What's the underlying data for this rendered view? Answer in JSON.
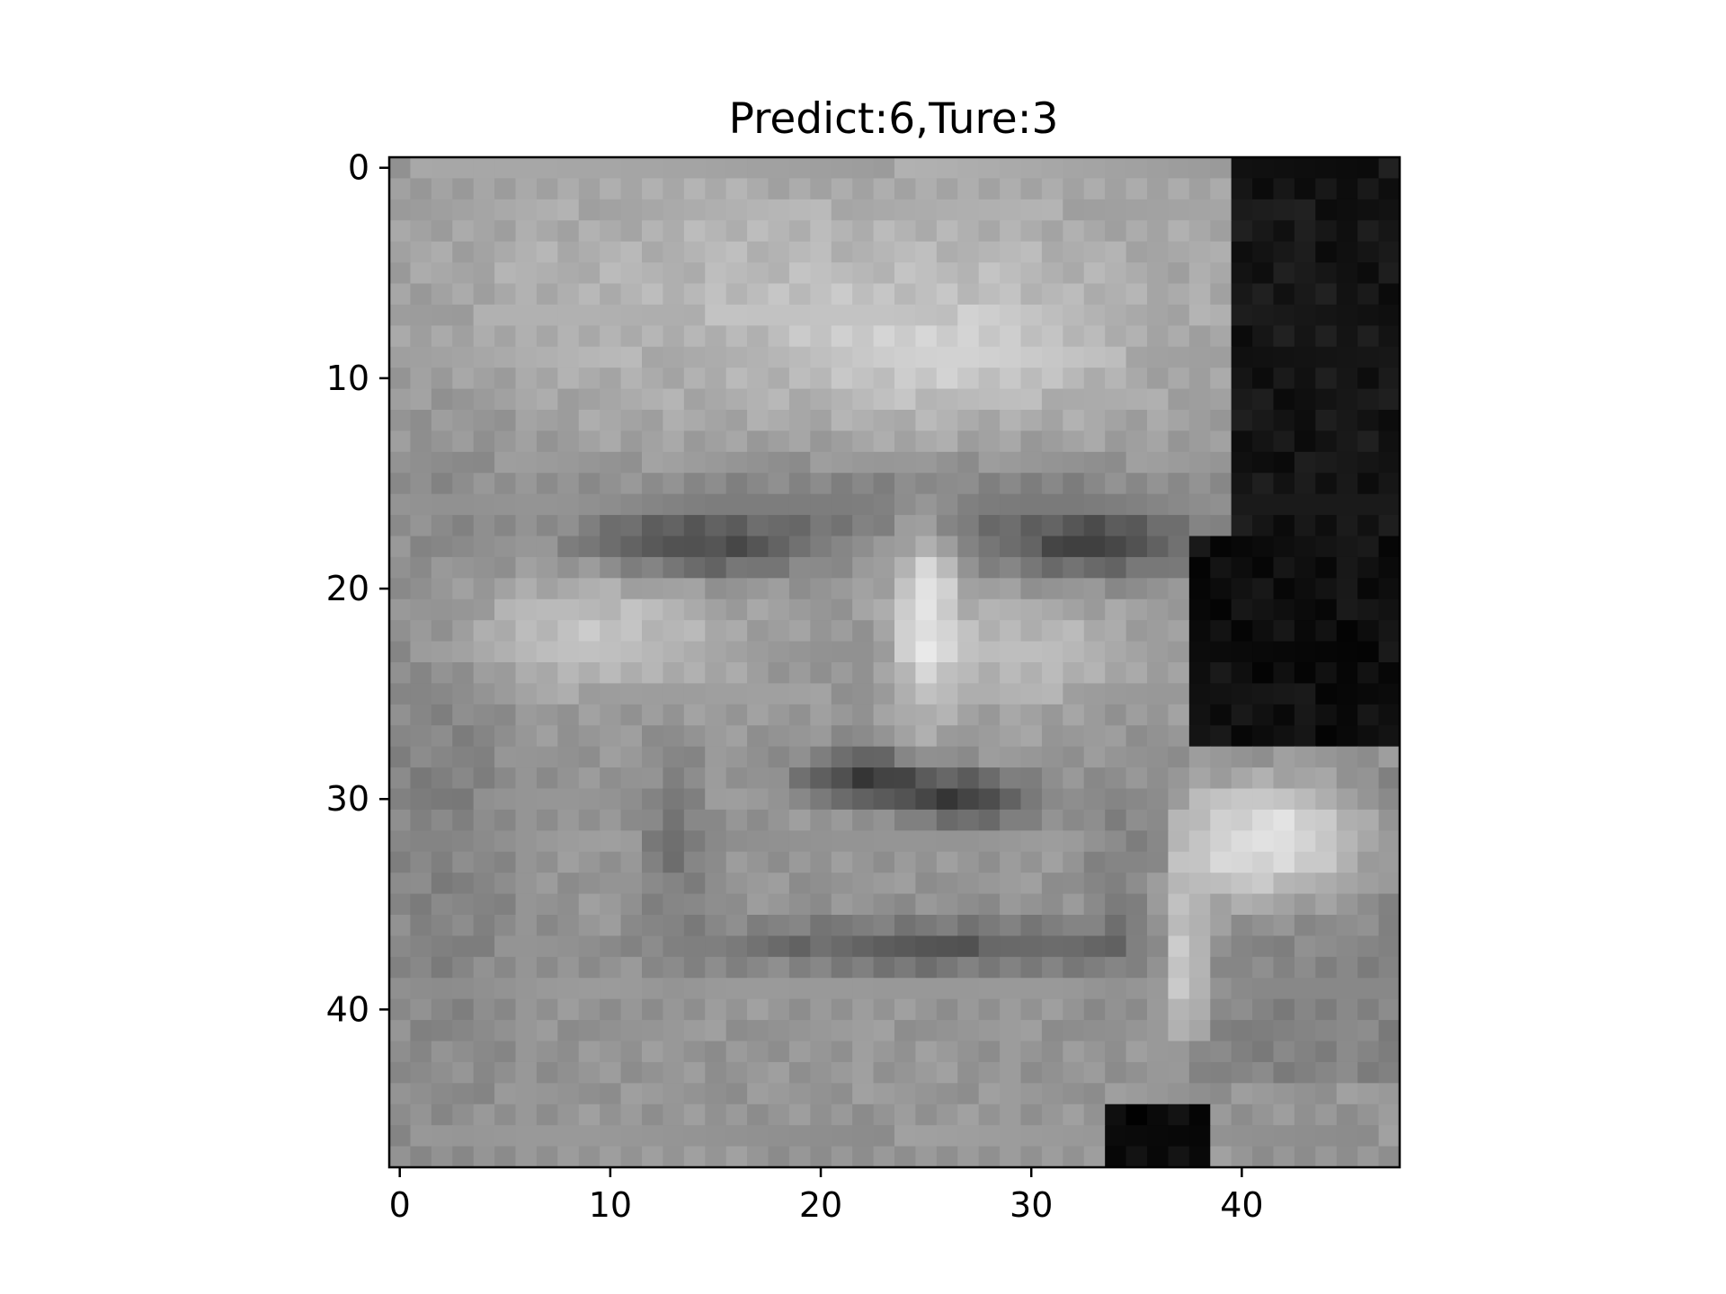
{
  "title": "Predict:6,Ture:3",
  "image": {
    "description": "48x48 grayscale face image shown with nearest-neighbour pixels",
    "colormap": "gray"
  },
  "axes": {
    "xlim": [
      -0.5,
      47.5
    ],
    "ylim": [
      47.5,
      -0.5
    ],
    "x_ticks": [
      {
        "value": 0,
        "label": "0"
      },
      {
        "value": 10,
        "label": "10"
      },
      {
        "value": 20,
        "label": "20"
      },
      {
        "value": 30,
        "label": "30"
      },
      {
        "value": 40,
        "label": "40"
      }
    ],
    "y_ticks": [
      {
        "value": 0,
        "label": "0"
      },
      {
        "value": 10,
        "label": "10"
      },
      {
        "value": 20,
        "label": "20"
      },
      {
        "value": 30,
        "label": "30"
      },
      {
        "value": 40,
        "label": "40"
      }
    ]
  },
  "colors": {
    "axis": "#000000",
    "background": "#ffffff"
  }
}
